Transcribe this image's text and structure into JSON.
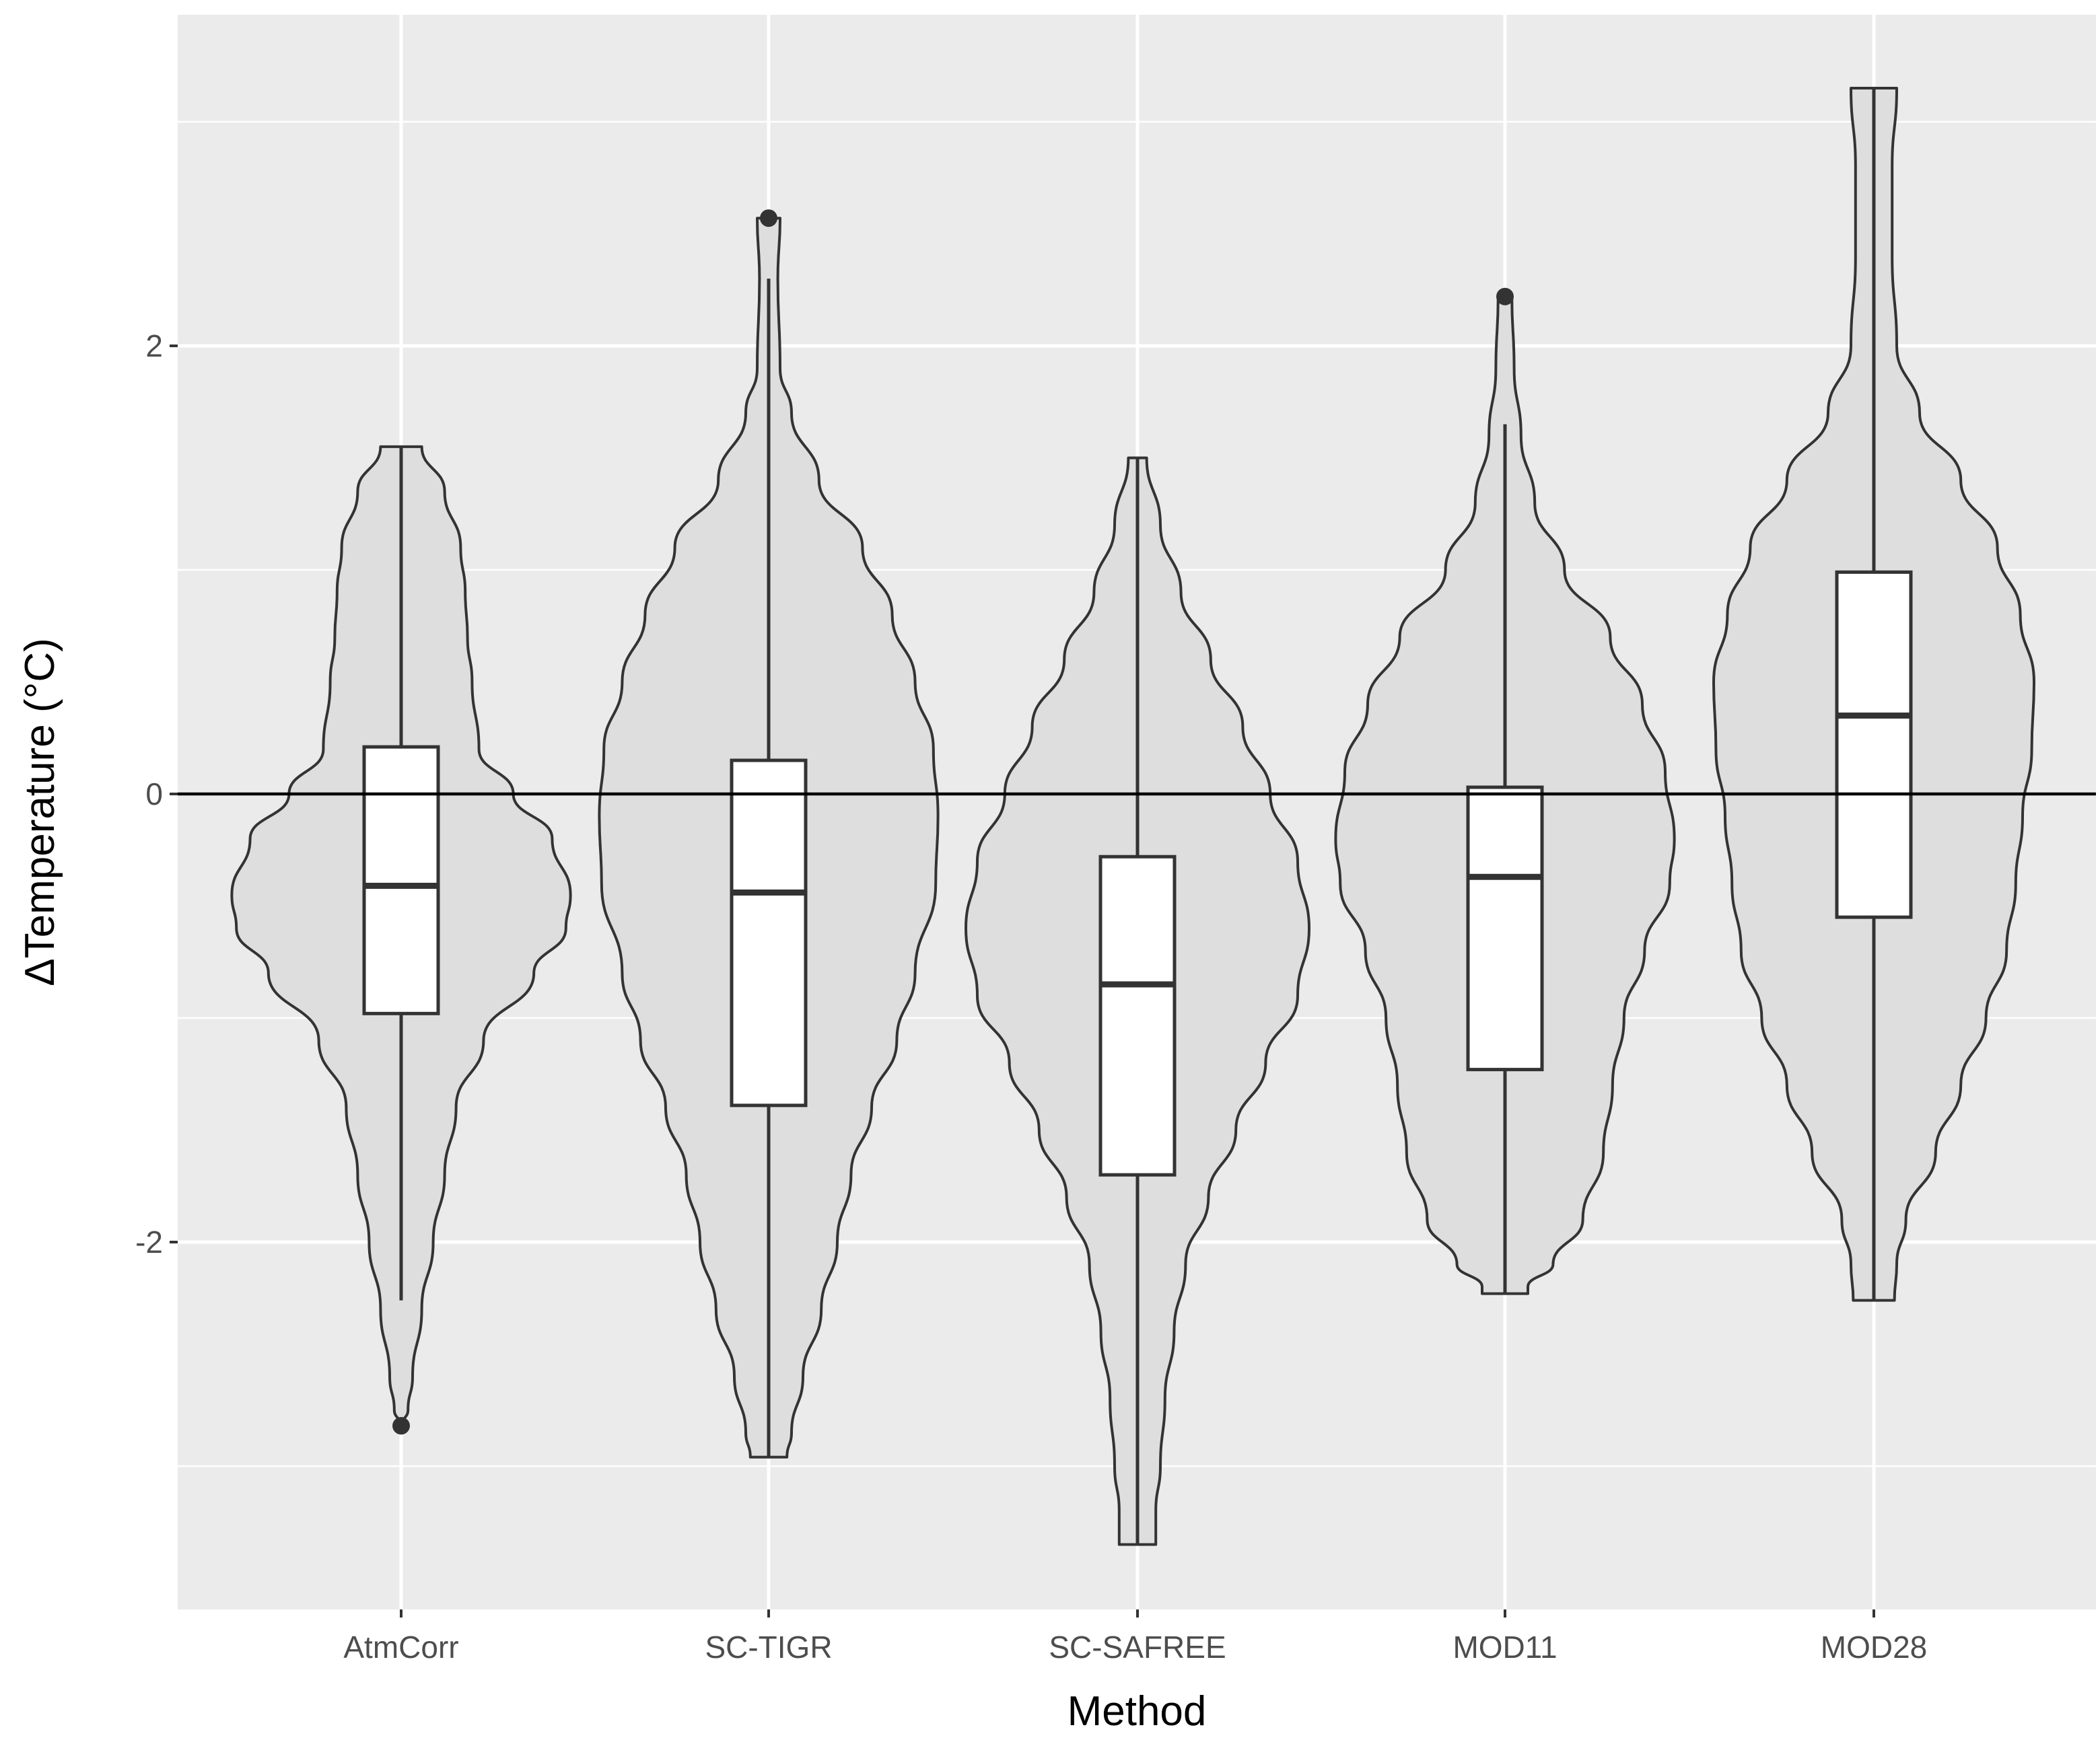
{
  "chart_data": {
    "type": "violin",
    "xlabel": "Method",
    "ylabel": "ΔTemperature (°C)",
    "categories": [
      "AtmCorr",
      "SC-TIGR",
      "SC-SAFREE",
      "MOD11",
      "MOD28"
    ],
    "y_ticks": [
      -2,
      0,
      2
    ],
    "y_tick_labels": [
      "-2",
      "0",
      "2"
    ],
    "ylim": [
      -3.7,
      3.5
    ],
    "reference_line": 0,
    "grid": true,
    "colors": {
      "panel": "#ebebeb",
      "grid": "#ffffff",
      "violin_fill": "#dedede",
      "violin_stroke": "#333333",
      "box_fill": "#ffffff",
      "box_stroke": "#333333",
      "reference_line": "#000000"
    },
    "series": [
      {
        "category": "AtmCorr",
        "box": {
          "q1": -0.98,
          "median": -0.41,
          "q3": 0.21,
          "whisker_low": -2.26,
          "whisker_high": 1.55
        },
        "outliers": [
          -2.82
        ],
        "density": [
          [
            1.55,
            0.09
          ],
          [
            1.35,
            0.19
          ],
          [
            1.1,
            0.26
          ],
          [
            0.9,
            0.28
          ],
          [
            0.7,
            0.29
          ],
          [
            0.5,
            0.31
          ],
          [
            0.2,
            0.34
          ],
          [
            0.0,
            0.49
          ],
          [
            -0.2,
            0.66
          ],
          [
            -0.45,
            0.74
          ],
          [
            -0.6,
            0.72
          ],
          [
            -0.8,
            0.58
          ],
          [
            -1.1,
            0.36
          ],
          [
            -1.4,
            0.24
          ],
          [
            -1.7,
            0.19
          ],
          [
            -2.0,
            0.14
          ],
          [
            -2.3,
            0.09
          ],
          [
            -2.6,
            0.05
          ],
          [
            -2.75,
            0.03
          ],
          [
            -2.82,
            0.0
          ]
        ]
      },
      {
        "category": "SC-TIGR",
        "box": {
          "q1": -1.39,
          "median": -0.44,
          "q3": 0.15,
          "whisker_low": -2.96,
          "whisker_high": 2.3
        },
        "outliers": [
          2.57
        ],
        "density": [
          [
            2.57,
            0.05
          ],
          [
            2.3,
            0.04
          ],
          [
            1.9,
            0.05
          ],
          [
            1.7,
            0.1
          ],
          [
            1.4,
            0.22
          ],
          [
            1.1,
            0.41
          ],
          [
            0.8,
            0.54
          ],
          [
            0.5,
            0.64
          ],
          [
            0.2,
            0.72
          ],
          [
            -0.1,
            0.74
          ],
          [
            -0.4,
            0.73
          ],
          [
            -0.8,
            0.64
          ],
          [
            -1.1,
            0.56
          ],
          [
            -1.4,
            0.45
          ],
          [
            -1.7,
            0.36
          ],
          [
            -2.0,
            0.3
          ],
          [
            -2.3,
            0.23
          ],
          [
            -2.6,
            0.15
          ],
          [
            -2.85,
            0.1
          ],
          [
            -2.96,
            0.08
          ]
        ]
      },
      {
        "category": "SC-SAFREE",
        "box": {
          "q1": -1.7,
          "median": -0.85,
          "q3": -0.28,
          "whisker_low": -3.35,
          "whisker_high": 1.5
        },
        "outliers": [],
        "density": [
          [
            1.5,
            0.04
          ],
          [
            1.2,
            0.1
          ],
          [
            0.9,
            0.19
          ],
          [
            0.6,
            0.32
          ],
          [
            0.3,
            0.46
          ],
          [
            0.0,
            0.58
          ],
          [
            -0.3,
            0.7
          ],
          [
            -0.6,
            0.75
          ],
          [
            -0.9,
            0.7
          ],
          [
            -1.2,
            0.56
          ],
          [
            -1.5,
            0.43
          ],
          [
            -1.8,
            0.31
          ],
          [
            -2.1,
            0.21
          ],
          [
            -2.4,
            0.16
          ],
          [
            -2.7,
            0.12
          ],
          [
            -3.0,
            0.1
          ],
          [
            -3.2,
            0.08
          ],
          [
            -3.35,
            0.08
          ]
        ]
      },
      {
        "category": "MOD11",
        "box": {
          "q1": -1.23,
          "median": -0.37,
          "q3": 0.03,
          "whisker_low": -2.23,
          "whisker_high": 1.65
        },
        "outliers": [
          2.22
        ],
        "density": [
          [
            2.22,
            0.03
          ],
          [
            1.9,
            0.04
          ],
          [
            1.6,
            0.07
          ],
          [
            1.3,
            0.13
          ],
          [
            1.0,
            0.26
          ],
          [
            0.7,
            0.46
          ],
          [
            0.4,
            0.6
          ],
          [
            0.1,
            0.7
          ],
          [
            -0.2,
            0.74
          ],
          [
            -0.4,
            0.72
          ],
          [
            -0.7,
            0.61
          ],
          [
            -1.0,
            0.52
          ],
          [
            -1.3,
            0.47
          ],
          [
            -1.6,
            0.43
          ],
          [
            -1.9,
            0.34
          ],
          [
            -2.1,
            0.21
          ],
          [
            -2.2,
            0.1
          ],
          [
            -2.23,
            0.1
          ]
        ]
      },
      {
        "category": "MOD28",
        "box": {
          "q1": -0.55,
          "median": 0.35,
          "q3": 0.99,
          "whisker_low": -2.26,
          "whisker_high": 3.15
        },
        "outliers": [],
        "density": [
          [
            3.15,
            0.1
          ],
          [
            2.8,
            0.08
          ],
          [
            2.4,
            0.08
          ],
          [
            2.0,
            0.1
          ],
          [
            1.7,
            0.2
          ],
          [
            1.4,
            0.38
          ],
          [
            1.1,
            0.54
          ],
          [
            0.8,
            0.64
          ],
          [
            0.5,
            0.7
          ],
          [
            0.2,
            0.69
          ],
          [
            -0.1,
            0.65
          ],
          [
            -0.4,
            0.62
          ],
          [
            -0.7,
            0.58
          ],
          [
            -1.0,
            0.49
          ],
          [
            -1.3,
            0.38
          ],
          [
            -1.6,
            0.27
          ],
          [
            -1.9,
            0.14
          ],
          [
            -2.1,
            0.1
          ],
          [
            -2.26,
            0.09
          ]
        ]
      }
    ]
  }
}
